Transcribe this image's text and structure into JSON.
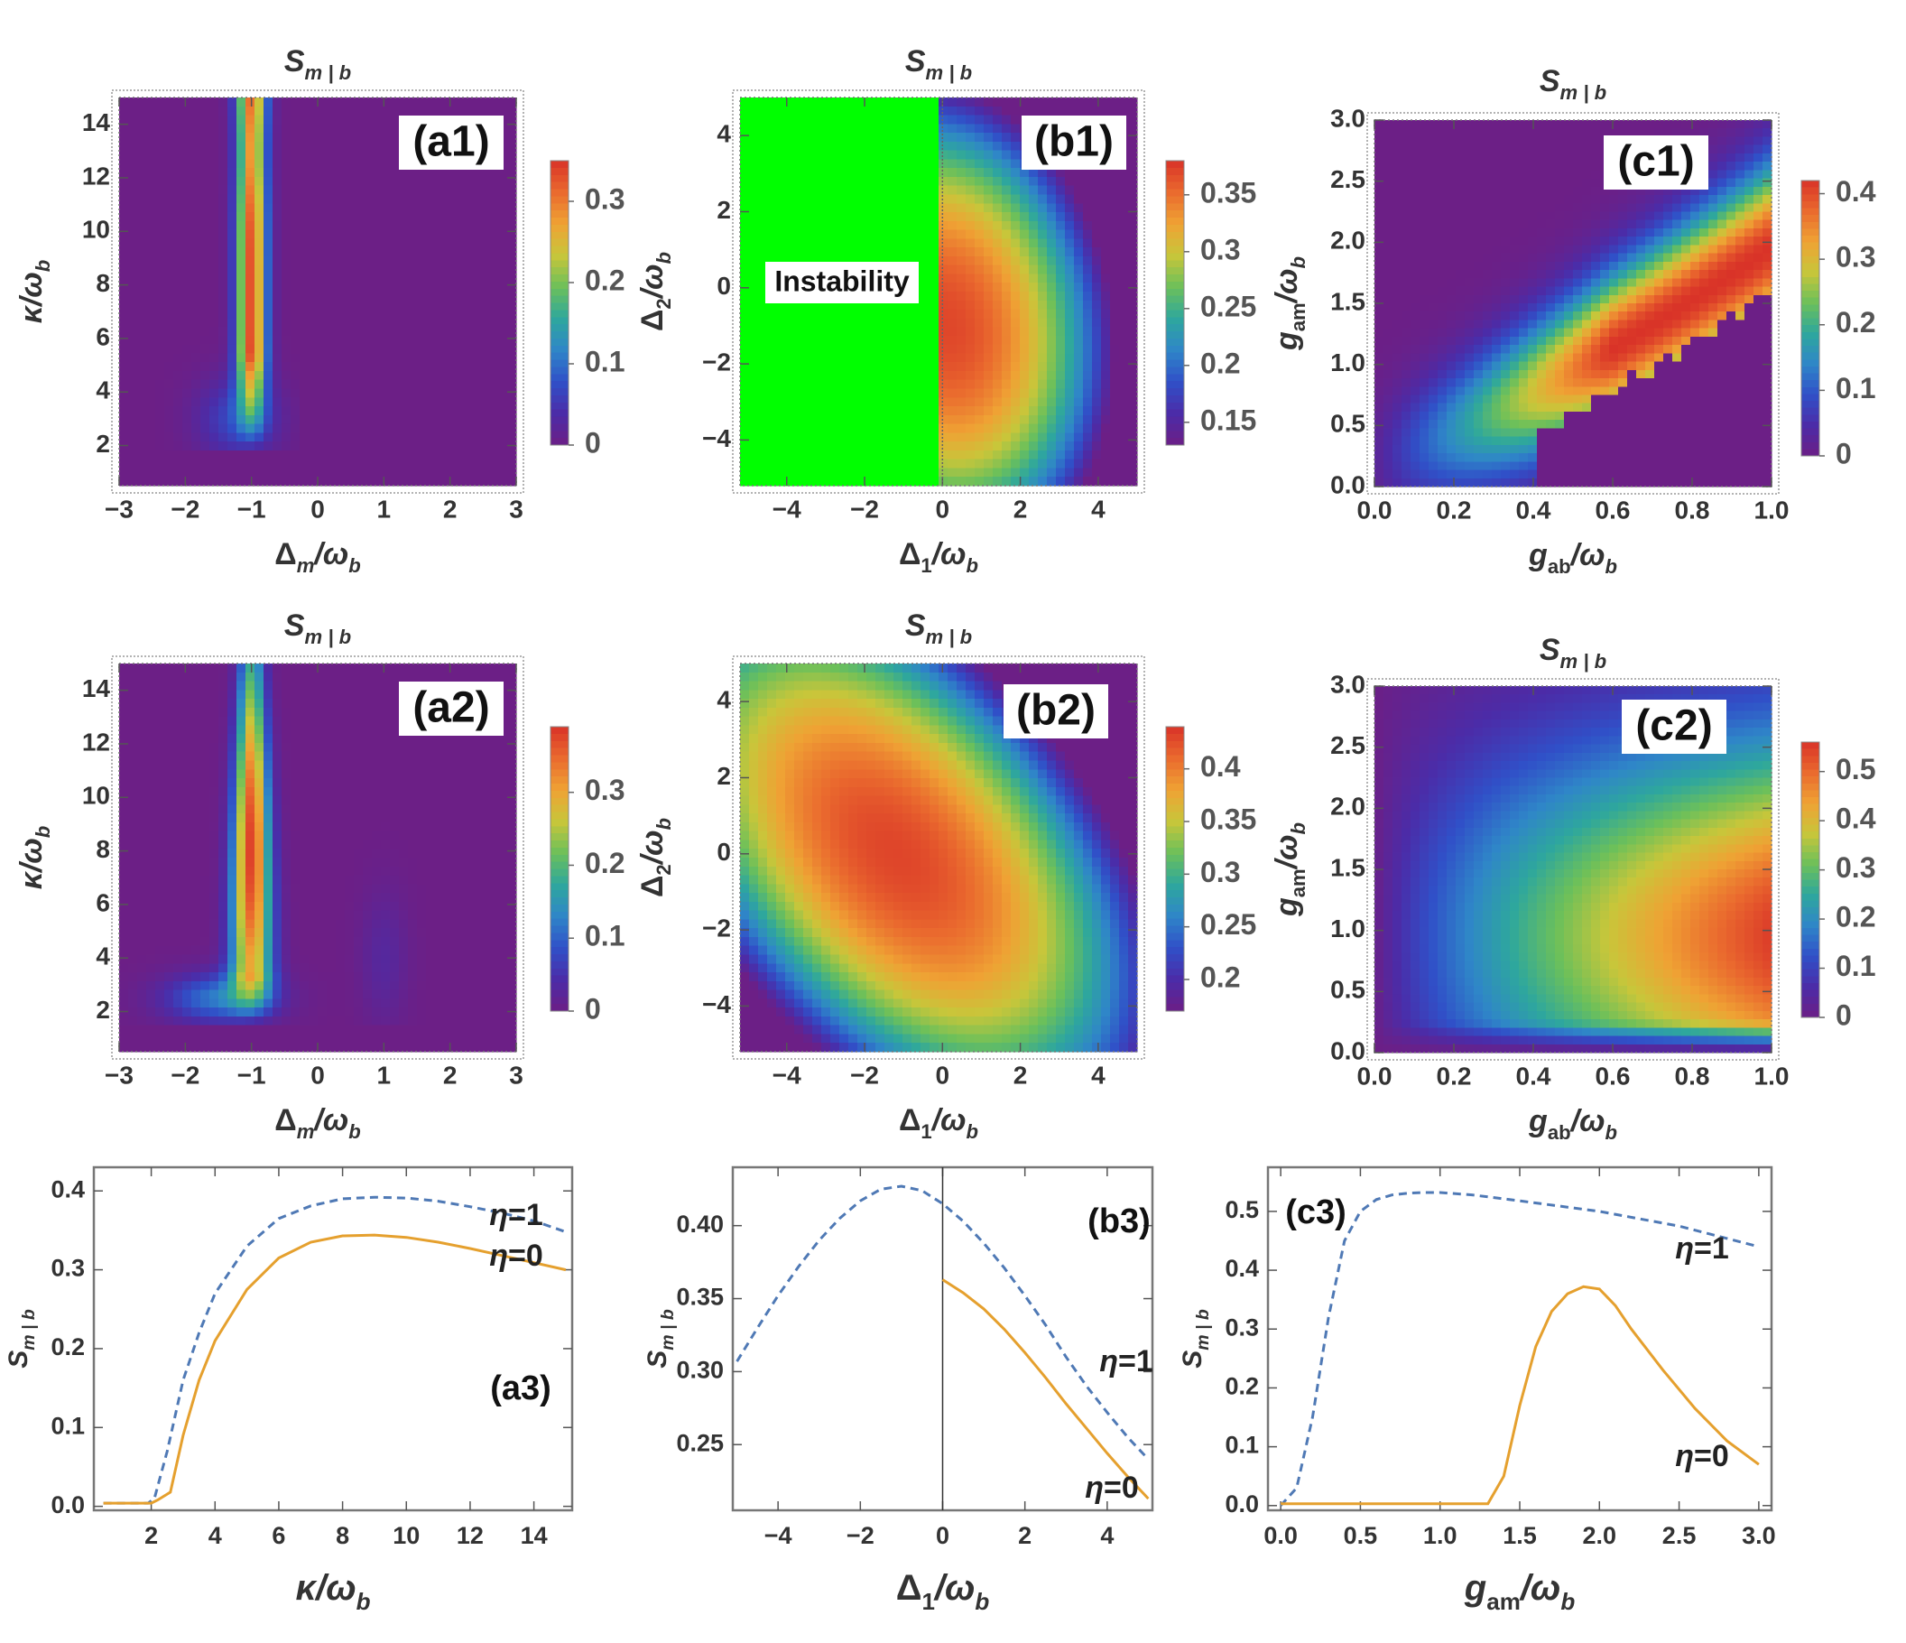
{
  "figure": {
    "domain": "Chart",
    "colorscale": [
      "#6c1f86",
      "#4b2ca8",
      "#3050c8",
      "#2f86c8",
      "#2ea79d",
      "#6cc05a",
      "#c8c63a",
      "#efa234",
      "#ea6a2e",
      "#d93328"
    ]
  },
  "chart_data": [
    {
      "id": "a1",
      "type": "heatmap",
      "title": "S_{m|b}",
      "panel_label": "(a1)",
      "xlabel": "Δm/ωb",
      "ylabel": "κ/ωb",
      "xlim": [
        -3,
        3
      ],
      "ylim": [
        0.5,
        15
      ],
      "xticks": [
        -3,
        -2,
        -1,
        0,
        1,
        2,
        3
      ],
      "yticks": [
        2,
        4,
        6,
        8,
        10,
        12,
        14
      ],
      "colorbar": {
        "min": 0,
        "max": 0.35,
        "ticks": [
          0,
          0.1,
          0.2,
          0.3
        ]
      },
      "features": "narrow vertical band centered at Δm/ωb=-1, peak ≈0.33 near κ/ωb≈8-12, zero for κ/ωb<2 and for Δm/ωb>-0.3"
    },
    {
      "id": "b1",
      "type": "heatmap",
      "title": "S_{m|b}",
      "panel_label": "(b1)",
      "xlabel": "Δ1/ωb",
      "ylabel": "Δ2/ωb",
      "xlim": [
        -5.2,
        5
      ],
      "ylim": [
        -5.2,
        5
      ],
      "xticks": [
        -4,
        -2,
        0,
        2,
        4
      ],
      "yticks": [
        -4,
        -2,
        0,
        2,
        4
      ],
      "colorbar": {
        "min": 0.13,
        "max": 0.38,
        "ticks": [
          0.15,
          0.2,
          0.25,
          0.3,
          0.35
        ]
      },
      "annotation": "Instability",
      "instability_region": {
        "x_from": -5,
        "x_to": 0,
        "color": "#00ff00"
      },
      "features": "stable for Δ1/ωb>0; maximum ≈0.37 at Δ1/ωb=0, Δ2/ωb≈-1"
    },
    {
      "id": "c1",
      "type": "heatmap",
      "title": "S_{m|b}",
      "panel_label": "(c1)",
      "xlabel": "gab/ωb",
      "ylabel": "gam/ωb",
      "xlim": [
        0,
        1
      ],
      "ylim": [
        0,
        3
      ],
      "xticks": [
        0.0,
        0.2,
        0.4,
        0.6,
        0.8,
        1.0
      ],
      "yticks": [
        0.0,
        0.5,
        1.0,
        1.5,
        2.0,
        2.5,
        3.0
      ],
      "colorbar": {
        "min": 0,
        "max": 0.42,
        "ticks": [
          0,
          0.1,
          0.2,
          0.3,
          0.4
        ]
      },
      "features": "curved ridge rising with gab, peak ≈0.4 near gab≈0.85, gam≈1.7; zero region below ridge for gab>0.4"
    },
    {
      "id": "a2",
      "type": "heatmap",
      "title": "S_{m|b}",
      "panel_label": "(a2)",
      "xlabel": "Δm/ωb",
      "ylabel": "κ/ωb",
      "xlim": [
        -3,
        3
      ],
      "ylim": [
        0.5,
        15
      ],
      "xticks": [
        -3,
        -2,
        -1,
        0,
        1,
        2,
        3
      ],
      "yticks": [
        2,
        4,
        6,
        8,
        10,
        12,
        14
      ],
      "colorbar": {
        "min": 0,
        "max": 0.39,
        "ticks": [
          0,
          0.1,
          0.2,
          0.3
        ]
      },
      "features": "band centered at Δm/ωb=-1 with peak ≈0.38 near κ/ωb≈8; weak lobe near Δm/ωb=1"
    },
    {
      "id": "b2",
      "type": "heatmap",
      "title": "S_{m|b}",
      "panel_label": "(b2)",
      "xlabel": "Δ1/ωb",
      "ylabel": "Δ2/ωb",
      "xlim": [
        -5.2,
        5
      ],
      "ylim": [
        -5.2,
        5
      ],
      "xticks": [
        -4,
        -2,
        0,
        2,
        4
      ],
      "yticks": [
        -4,
        -2,
        0,
        2,
        4
      ],
      "colorbar": {
        "min": 0.17,
        "max": 0.44,
        "ticks": [
          0.2,
          0.25,
          0.3,
          0.35,
          0.4
        ]
      },
      "features": "tilted elliptical maximum ≈0.43 near Δ1/ωb≈-1, Δ2/ωb≈0"
    },
    {
      "id": "c2",
      "type": "heatmap",
      "title": "S_{m|b}",
      "panel_label": "(c2)",
      "xlabel": "gab/ωb",
      "ylabel": "gam/ωb",
      "xlim": [
        0,
        1
      ],
      "ylim": [
        0,
        3
      ],
      "xticks": [
        0.0,
        0.2,
        0.4,
        0.6,
        0.8,
        1.0
      ],
      "yticks": [
        0.0,
        0.5,
        1.0,
        1.5,
        2.0,
        2.5,
        3.0
      ],
      "colorbar": {
        "min": 0,
        "max": 0.56,
        "ticks": [
          0,
          0.1,
          0.2,
          0.3,
          0.4,
          0.5
        ]
      },
      "features": "maximum ≈0.55 near gab≈0.85, gam≈0.9; low values near gab=0 and gam=0"
    },
    {
      "id": "a3",
      "type": "line",
      "panel_label": "(a3)",
      "xlabel": "κ/ωb",
      "ylabel": "S_{m|b}",
      "xlim": [
        0.2,
        15.2
      ],
      "ylim": [
        -0.005,
        0.43
      ],
      "xticks": [
        2,
        4,
        6,
        8,
        10,
        12,
        14
      ],
      "yticks": [
        0.0,
        0.1,
        0.2,
        0.3,
        0.4
      ],
      "series": [
        {
          "name": "η=1",
          "style": "dashed",
          "color": "#4f79b5",
          "x": [
            0.5,
            1.9,
            2.1,
            2.5,
            3,
            3.5,
            4,
            5,
            6,
            7,
            8,
            9,
            10,
            11,
            12,
            13,
            14,
            15
          ],
          "y": [
            0.004,
            0.004,
            0.01,
            0.07,
            0.16,
            0.22,
            0.27,
            0.33,
            0.365,
            0.381,
            0.39,
            0.392,
            0.391,
            0.387,
            0.38,
            0.372,
            0.362,
            0.348
          ]
        },
        {
          "name": "η=0",
          "style": "solid",
          "color": "#e5a02e",
          "x": [
            0.5,
            2.0,
            2.2,
            2.6,
            3,
            3.5,
            4,
            5,
            6,
            7,
            8,
            9,
            10,
            11,
            12,
            13,
            14,
            15
          ],
          "y": [
            0.004,
            0.004,
            0.008,
            0.018,
            0.09,
            0.16,
            0.21,
            0.275,
            0.315,
            0.335,
            0.343,
            0.344,
            0.341,
            0.335,
            0.327,
            0.318,
            0.309,
            0.3
          ]
        }
      ]
    },
    {
      "id": "b3",
      "type": "line",
      "panel_label": "(b3)",
      "xlabel": "Δ1/ωb",
      "ylabel": "S_{m|b}",
      "xlim": [
        -5.1,
        5.1
      ],
      "ylim": [
        0.205,
        0.44
      ],
      "xticks": [
        -4,
        -2,
        0,
        2,
        4
      ],
      "yticks": [
        0.25,
        0.3,
        0.35,
        0.4
      ],
      "series": [
        {
          "name": "η=1",
          "style": "dashed",
          "color": "#4f79b5",
          "x": [
            -5,
            -4.5,
            -4,
            -3.5,
            -3,
            -2.5,
            -2,
            -1.5,
            -1,
            -0.5,
            0,
            0.5,
            1,
            1.5,
            2,
            2.5,
            3,
            3.5,
            4,
            4.5,
            5
          ],
          "y": [
            0.307,
            0.33,
            0.352,
            0.372,
            0.39,
            0.405,
            0.417,
            0.425,
            0.427,
            0.424,
            0.415,
            0.403,
            0.388,
            0.371,
            0.352,
            0.332,
            0.31,
            0.29,
            0.272,
            0.255,
            0.24
          ]
        },
        {
          "name": "η=0",
          "style": "solid",
          "color": "#e5a02e",
          "x": [
            0,
            0.5,
            1,
            1.5,
            2,
            2.5,
            3,
            3.5,
            4,
            4.5,
            5
          ],
          "y": [
            0.363,
            0.354,
            0.343,
            0.329,
            0.313,
            0.296,
            0.278,
            0.261,
            0.244,
            0.228,
            0.213
          ]
        }
      ],
      "vertical_line_x": 0
    },
    {
      "id": "c3",
      "type": "line",
      "panel_label": "(c3)",
      "xlabel": "gam/ωb",
      "ylabel": "S_{m|b}",
      "xlim": [
        -0.08,
        3.08
      ],
      "ylim": [
        -0.008,
        0.575
      ],
      "xticks": [
        0.0,
        0.5,
        1.0,
        1.5,
        2.0,
        2.5,
        3.0
      ],
      "yticks": [
        0.0,
        0.1,
        0.2,
        0.3,
        0.4,
        0.5
      ],
      "series": [
        {
          "name": "η=1",
          "style": "dashed",
          "color": "#4f79b5",
          "x": [
            0,
            0.1,
            0.2,
            0.3,
            0.4,
            0.5,
            0.6,
            0.7,
            0.8,
            0.9,
            1.0,
            1.2,
            1.5,
            2.0,
            2.5,
            3.0
          ],
          "y": [
            0.0,
            0.03,
            0.15,
            0.32,
            0.45,
            0.5,
            0.52,
            0.528,
            0.531,
            0.532,
            0.532,
            0.528,
            0.518,
            0.5,
            0.475,
            0.44
          ]
        },
        {
          "name": "η=0",
          "style": "solid",
          "color": "#e5a02e",
          "x": [
            0,
            1.3,
            1.4,
            1.5,
            1.6,
            1.7,
            1.8,
            1.9,
            2.0,
            2.1,
            2.2,
            2.4,
            2.6,
            2.8,
            3.0
          ],
          "y": [
            0.003,
            0.003,
            0.05,
            0.17,
            0.27,
            0.33,
            0.36,
            0.372,
            0.368,
            0.34,
            0.3,
            0.23,
            0.165,
            0.11,
            0.07
          ]
        }
      ]
    }
  ]
}
